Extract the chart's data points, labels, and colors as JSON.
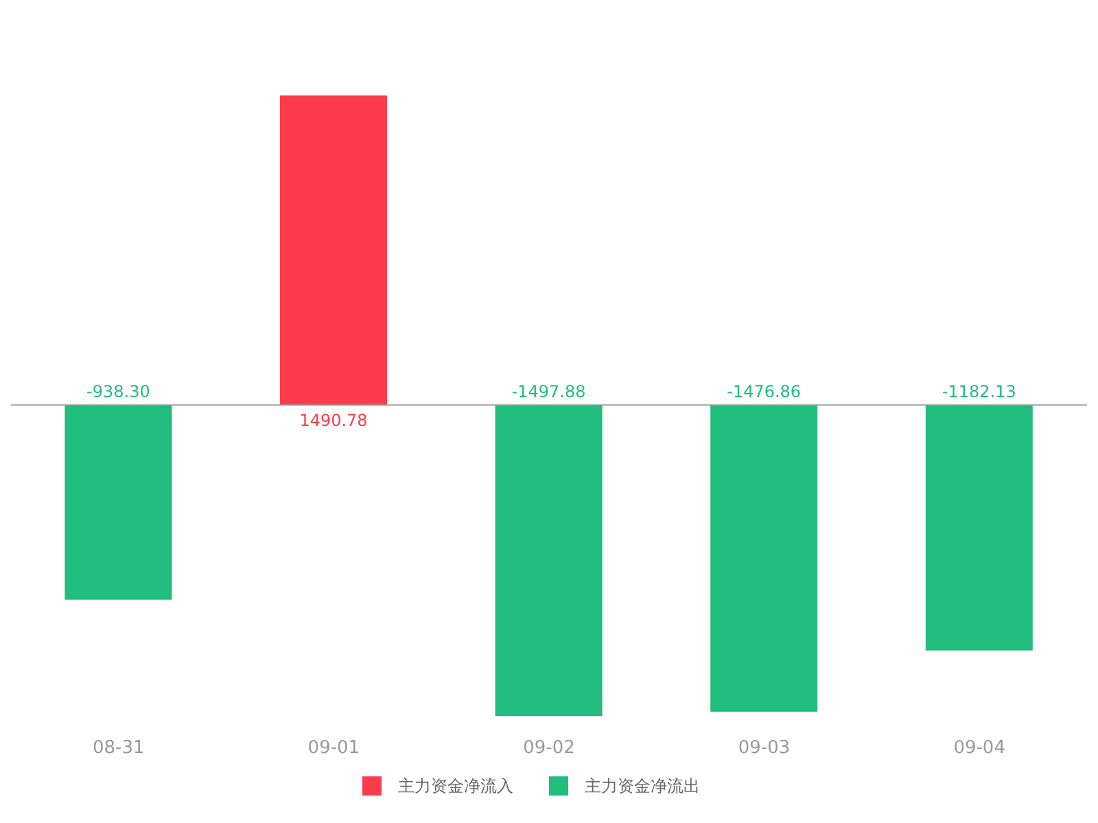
{
  "chart_data": {
    "type": "bar",
    "categories": [
      "08-31",
      "09-01",
      "09-02",
      "09-03",
      "09-04"
    ],
    "series": [
      {
        "name": "主力资金净流入",
        "color": "#fc3c4c",
        "values": [
          null,
          1490.78,
          null,
          null,
          null
        ],
        "value_labels": [
          null,
          "1490.78",
          null,
          null,
          null
        ]
      },
      {
        "name": "主力资金净流出",
        "color": "#21bd7f",
        "values": [
          -938.3,
          null,
          -1497.88,
          -1476.86,
          -1182.13
        ],
        "value_labels": [
          "-938.30",
          null,
          "-1497.88",
          "-1476.86",
          "-1182.13"
        ]
      }
    ],
    "stacked": true,
    "legend": "bottom"
  }
}
